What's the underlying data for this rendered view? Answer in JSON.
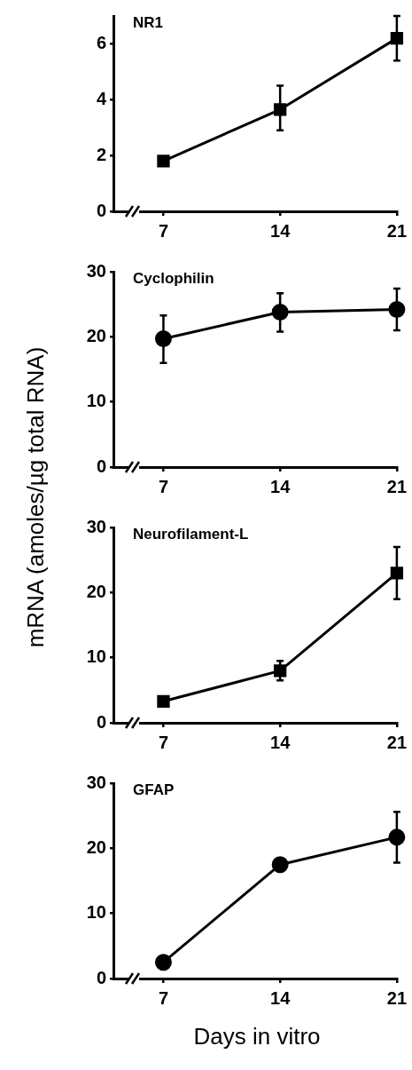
{
  "chart_data": [
    {
      "type": "line",
      "title": "NR1",
      "ylabel": "mRNA (amoles/µg total RNA)",
      "x": [
        7,
        14,
        21
      ],
      "xlim": [
        4,
        21
      ],
      "xticks": [
        7,
        14,
        21
      ],
      "ylim": [
        0,
        7
      ],
      "yticks": [
        0,
        2,
        4,
        6
      ],
      "grid": false,
      "legend": false,
      "marker": "square",
      "line_style": "solid",
      "series": [
        {
          "color": "#000000",
          "values": [
            1.8,
            3.65,
            6.2
          ],
          "errors": [
            null,
            [
              2.9,
              4.5
            ],
            [
              5.4,
              7.0
            ]
          ]
        }
      ]
    },
    {
      "type": "line",
      "title": "Cyclophilin",
      "x": [
        7,
        14,
        21
      ],
      "xlim": [
        4,
        21
      ],
      "xticks": [
        7,
        14,
        21
      ],
      "ylim": [
        0,
        30
      ],
      "yticks": [
        0,
        10,
        20,
        30
      ],
      "grid": false,
      "legend": false,
      "marker": "circle",
      "line_style": "solid",
      "series": [
        {
          "color": "#000000",
          "values": [
            19.7,
            23.8,
            24.2
          ],
          "errors": [
            [
              16,
              23.3
            ],
            [
              20.8,
              26.7
            ],
            [
              21,
              27.4
            ]
          ]
        }
      ]
    },
    {
      "type": "line",
      "title": "Neurofilament-L",
      "x": [
        7,
        14,
        21
      ],
      "xlim": [
        4,
        21
      ],
      "xticks": [
        7,
        14,
        21
      ],
      "ylim": [
        0,
        30
      ],
      "yticks": [
        0,
        10,
        20,
        30
      ],
      "grid": false,
      "legend": false,
      "marker": "square",
      "line_style": "solid",
      "series": [
        {
          "color": "#000000",
          "values": [
            3.3,
            8,
            23
          ],
          "errors": [
            null,
            [
              6.5,
              9.5
            ],
            [
              19,
              27
            ]
          ]
        }
      ]
    },
    {
      "type": "line",
      "title": "GFAP",
      "xlabel": "Days in vitro",
      "x": [
        7,
        14,
        21
      ],
      "xlim": [
        4,
        21
      ],
      "xticks": [
        7,
        14,
        21
      ],
      "ylim": [
        0,
        30
      ],
      "yticks": [
        0,
        10,
        20,
        30
      ],
      "grid": false,
      "legend": false,
      "marker": "circle",
      "line_style": "solid",
      "series": [
        {
          "color": "#000000",
          "values": [
            2.5,
            17.5,
            21.7
          ],
          "errors": [
            null,
            null,
            [
              17.8,
              25.6
            ]
          ]
        }
      ]
    }
  ]
}
